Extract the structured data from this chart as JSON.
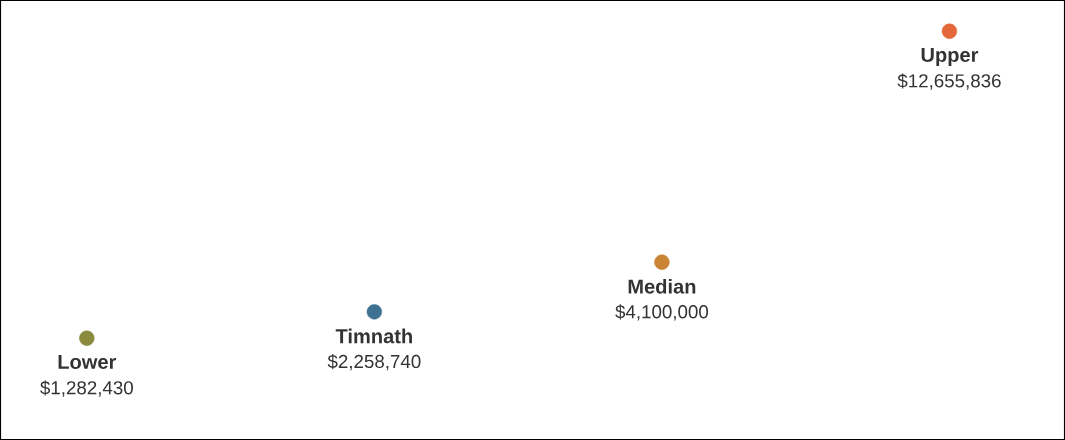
{
  "chart_data": {
    "type": "other",
    "categories": [
      "Lower",
      "Timnath",
      "Median",
      "Upper"
    ],
    "values": [
      1282430,
      2258740,
      4100000,
      12655836
    ],
    "value_labels": [
      "$1,282,430",
      "$2,258,740",
      "$4,100,000",
      "$12,655,836"
    ],
    "colors": [
      "#8a8b3c",
      "#3f7192",
      "#c98436",
      "#e5683a"
    ]
  }
}
